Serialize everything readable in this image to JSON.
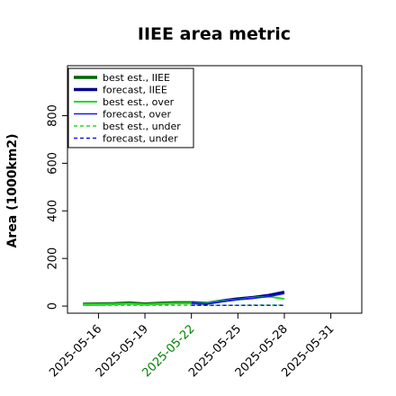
{
  "chart_data": {
    "type": "line",
    "title": "IIEE area metric",
    "xlabel": "",
    "ylabel": "Area (1000km2)",
    "x_ticks": [
      "2025-05-16",
      "2025-05-19",
      "2025-05-22",
      "2025-05-25",
      "2025-05-28",
      "2025-05-31"
    ],
    "x_tick_colors": [
      "#000000",
      "#000000",
      "#008000",
      "#000000",
      "#000000",
      "#000000"
    ],
    "xlim": [
      "2025-05-14",
      "2025-06-02"
    ],
    "y_ticks": [
      0,
      200,
      400,
      600,
      800
    ],
    "ylim": [
      -30,
      1010
    ],
    "grid": false,
    "legend_position": "top-left",
    "series": [
      {
        "name": "best est., IIEE",
        "color": "#006400",
        "style": "solid",
        "width": 3.5,
        "x": [
          "2025-05-15",
          "2025-05-16",
          "2025-05-17",
          "2025-05-18",
          "2025-05-19",
          "2025-05-20",
          "2025-05-21",
          "2025-05-22"
        ],
        "values": [
          8,
          9,
          10,
          13,
          9,
          12,
          14,
          14
        ]
      },
      {
        "name": "forecast, IIEE",
        "color": "#00008b",
        "style": "solid",
        "width": 3.5,
        "x": [
          "2025-05-22",
          "2025-05-23",
          "2025-05-24",
          "2025-05-25",
          "2025-05-26",
          "2025-05-27",
          "2025-05-28"
        ],
        "values": [
          14,
          12,
          22,
          30,
          36,
          45,
          58
        ]
      },
      {
        "name": "best est., over",
        "color": "#22dd22",
        "style": "solid",
        "width": 2,
        "x": [
          "2025-05-15",
          "2025-05-16",
          "2025-05-17",
          "2025-05-18",
          "2025-05-19",
          "2025-05-20",
          "2025-05-21",
          "2025-05-22",
          "2025-05-23",
          "2025-05-24",
          "2025-05-25",
          "2025-05-26",
          "2025-05-27",
          "2025-05-28"
        ],
        "values": [
          7,
          8,
          9,
          11,
          7,
          10,
          12,
          12,
          15,
          22,
          28,
          35,
          40,
          30
        ]
      },
      {
        "name": "forecast, over",
        "color": "#1515ff",
        "style": "solid",
        "width": 1.5,
        "x": [
          "2025-05-22",
          "2025-05-23",
          "2025-05-24",
          "2025-05-25",
          "2025-05-26",
          "2025-05-27",
          "2025-05-28"
        ],
        "values": [
          12,
          11,
          20,
          28,
          33,
          40,
          52
        ]
      },
      {
        "name": "best est., under",
        "color": "#22dd22",
        "style": "dashed",
        "width": 1.5,
        "x": [
          "2025-05-15",
          "2025-05-16",
          "2025-05-17",
          "2025-05-18",
          "2025-05-19",
          "2025-05-20",
          "2025-05-21",
          "2025-05-22",
          "2025-05-23",
          "2025-05-24",
          "2025-05-25",
          "2025-05-26",
          "2025-05-27",
          "2025-05-28"
        ],
        "values": [
          3,
          3,
          3,
          3,
          3,
          3,
          3,
          3,
          3,
          3,
          3,
          4,
          4,
          4
        ]
      },
      {
        "name": "forecast, under",
        "color": "#1515ff",
        "style": "dashed",
        "width": 1.5,
        "x": [
          "2025-05-22",
          "2025-05-23",
          "2025-05-24",
          "2025-05-25",
          "2025-05-26",
          "2025-05-27",
          "2025-05-28"
        ],
        "values": [
          3,
          3,
          3,
          3,
          3,
          3,
          3
        ]
      }
    ]
  }
}
